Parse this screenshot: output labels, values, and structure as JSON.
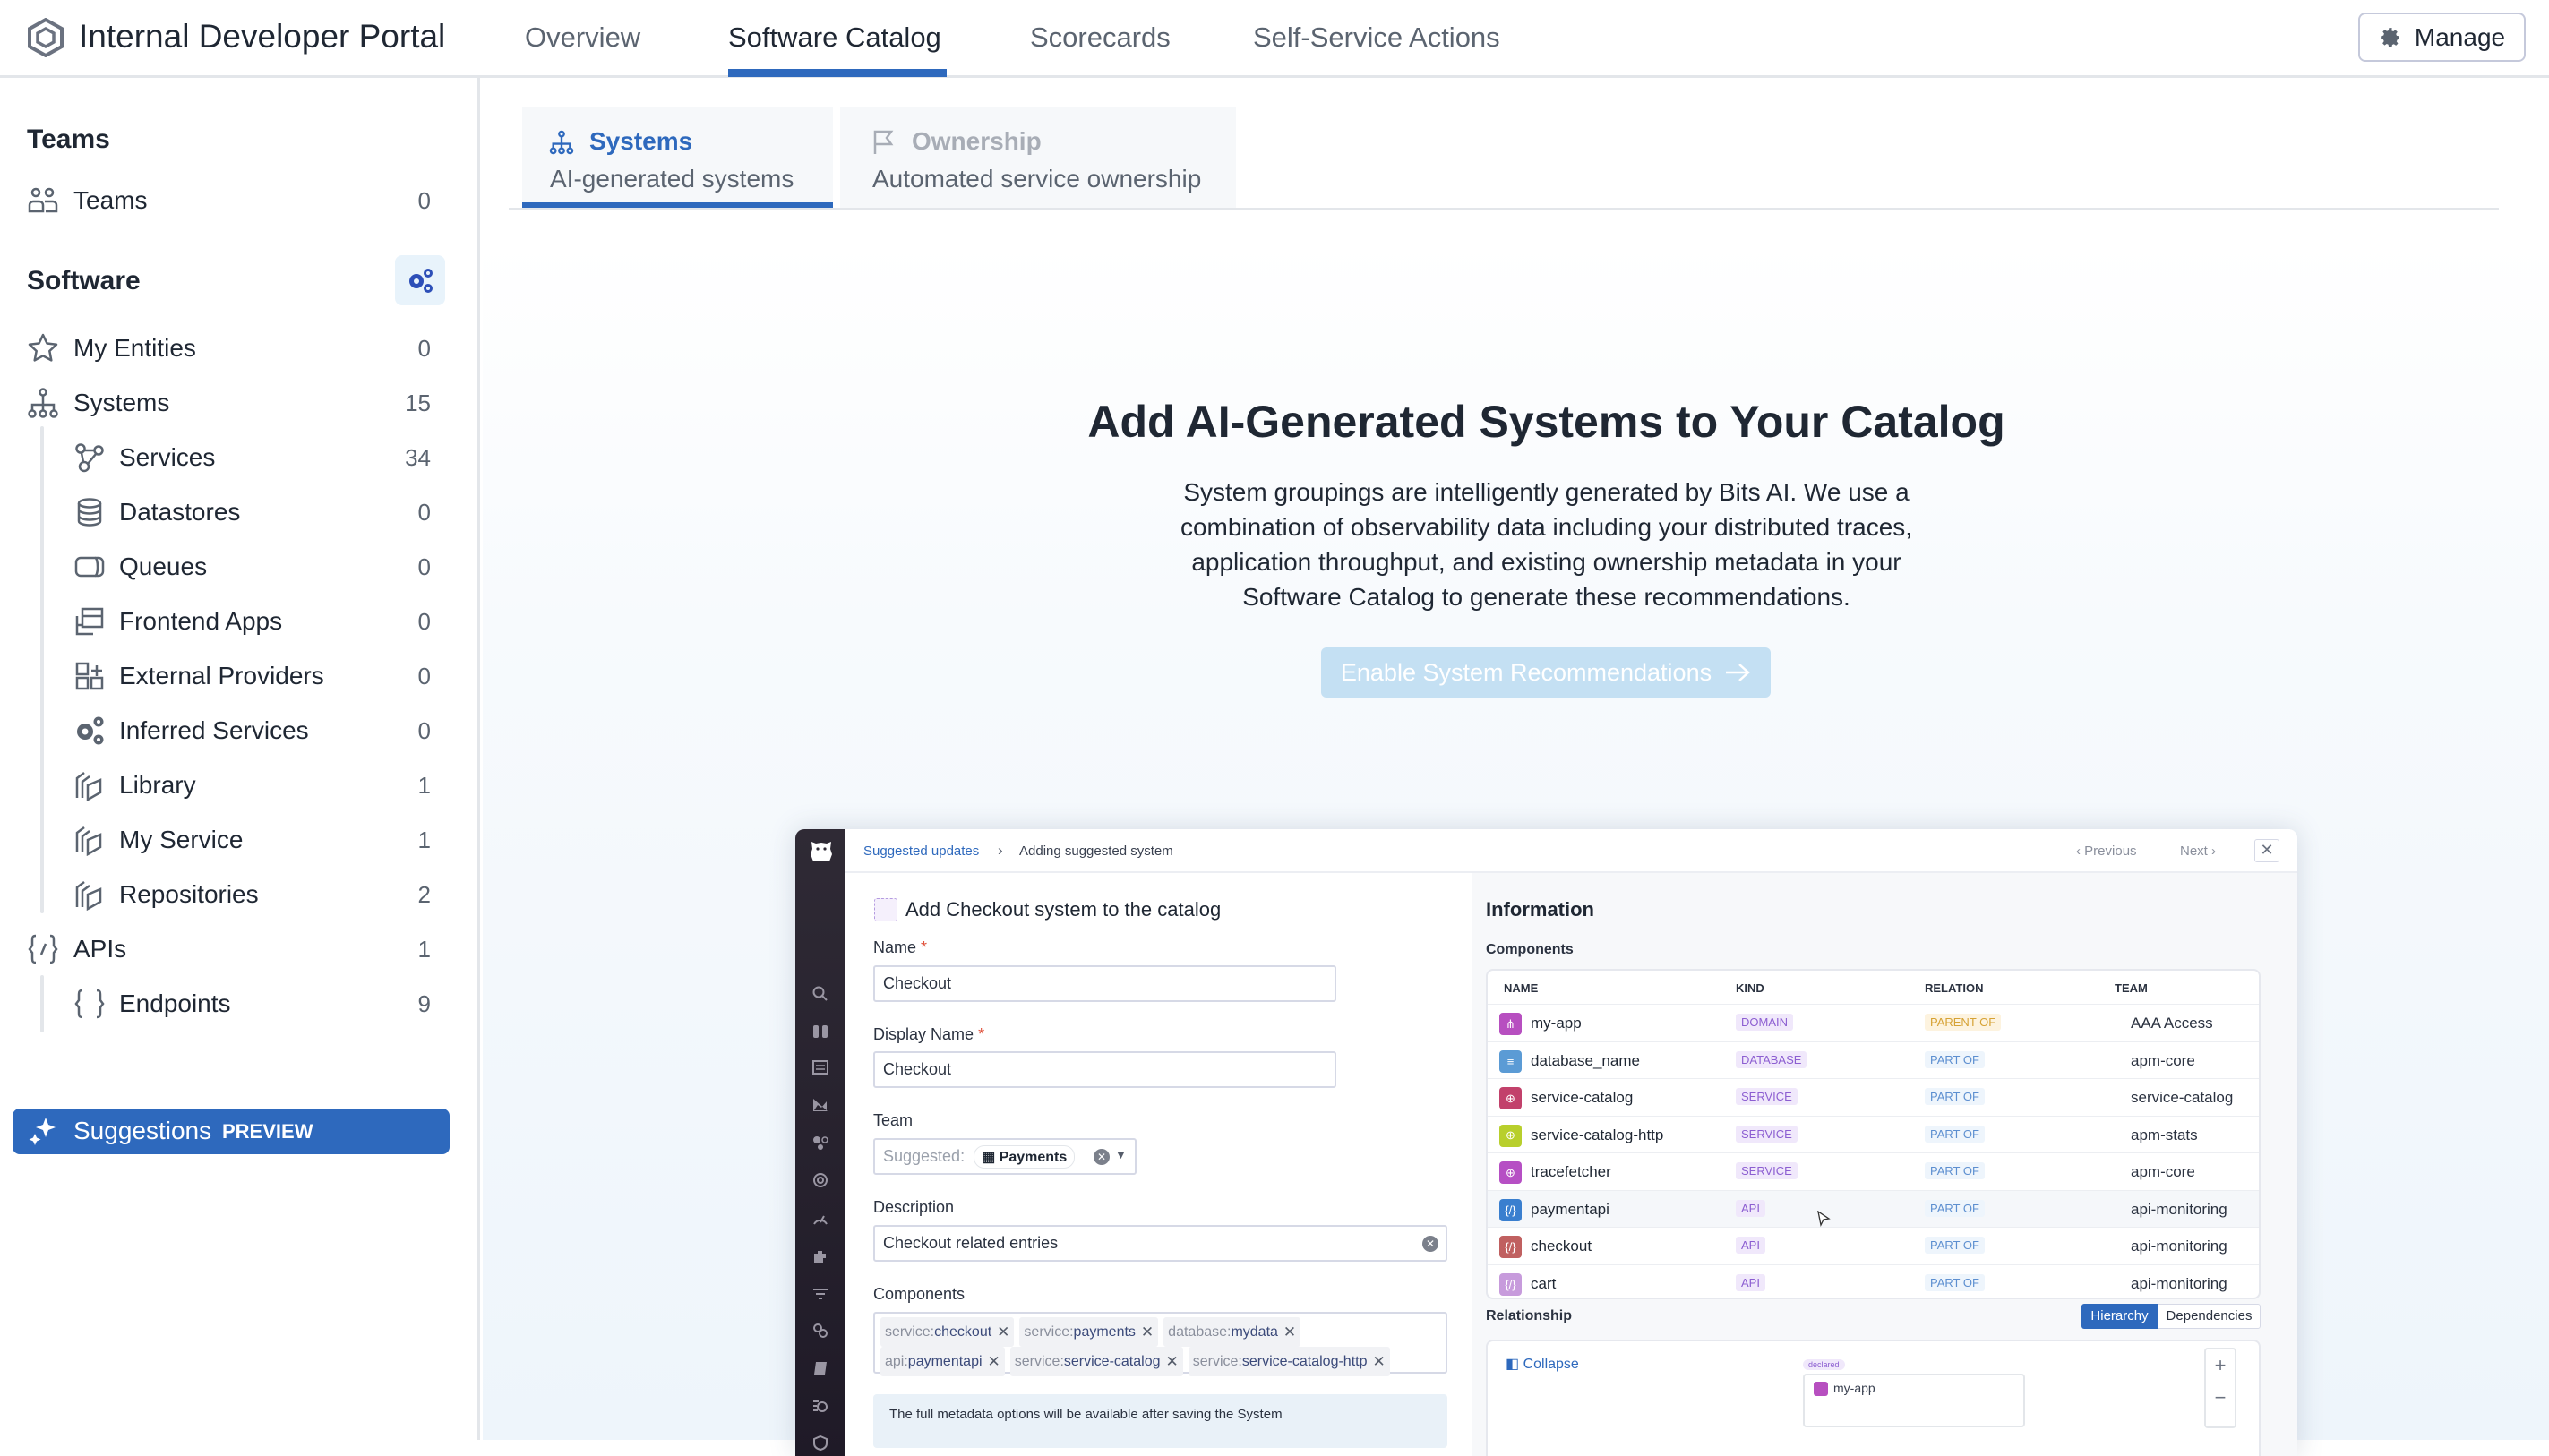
{
  "header": {
    "title": "Internal Developer Portal",
    "nav": [
      {
        "label": "Overview"
      },
      {
        "label": "Software Catalog",
        "active": true
      },
      {
        "label": "Scorecards"
      },
      {
        "label": "Self-Service Actions"
      }
    ],
    "manage_label": "Manage"
  },
  "colors": {
    "accent": "#2e69bd",
    "text": "#1f2733",
    "muted": "#5b6470",
    "button_disabled": "#c4e0f3"
  },
  "sidebar": {
    "teams_heading": "Teams",
    "teams_items": [
      {
        "label": "Teams",
        "count": "0",
        "icon": "people-icon"
      }
    ],
    "software_heading": "Software",
    "software_items": [
      {
        "label": "My Entities",
        "count": "0",
        "icon": "star-icon"
      },
      {
        "label": "Systems",
        "count": "15",
        "icon": "hierarchy-icon"
      },
      {
        "label": "Services",
        "count": "34",
        "icon": "services-icon"
      },
      {
        "label": "Datastores",
        "count": "0",
        "icon": "database-icon"
      },
      {
        "label": "Queues",
        "count": "0",
        "icon": "queue-icon"
      },
      {
        "label": "Frontend Apps",
        "count": "0",
        "icon": "frontend-icon"
      },
      {
        "label": "External Providers",
        "count": "0",
        "icon": "external-icon"
      },
      {
        "label": "Inferred Services",
        "count": "0",
        "icon": "gears-icon"
      },
      {
        "label": "Library",
        "count": "1",
        "icon": "layers-icon"
      },
      {
        "label": "My Service",
        "count": "1",
        "icon": "layers-icon"
      },
      {
        "label": "Repositories",
        "count": "2",
        "icon": "layers-icon"
      },
      {
        "label": "APIs",
        "count": "1",
        "icon": "api-icon"
      },
      {
        "label": "Endpoints",
        "count": "9",
        "icon": "braces-icon"
      }
    ],
    "suggestions": {
      "label": "Suggestions",
      "badge": "PREVIEW"
    }
  },
  "subtabs": [
    {
      "title": "Systems",
      "subtitle": "AI-generated systems",
      "active": true
    },
    {
      "title": "Ownership",
      "subtitle": "Automated service ownership"
    }
  ],
  "hero": {
    "title": "Add AI-Generated Systems to Your Catalog",
    "lines": [
      "System groupings are intelligently generated by Bits AI. We use a",
      "combination of observability data including your distributed traces,",
      "application throughput, and existing ownership metadata in your",
      "Software Catalog to generate these recommendations."
    ],
    "button": "Enable System Recommendations"
  },
  "preview": {
    "breadcrumb": [
      "Suggested updates",
      "Adding suggested system"
    ],
    "previous": "Previous",
    "next": "Next",
    "form_title": "Add Checkout system to the catalog",
    "name_label": "Name",
    "name_value": "Checkout",
    "display_name_label": "Display Name",
    "display_name_value": "Checkout",
    "team_label": "Team",
    "team_prefix": "Suggested:",
    "team_value": "Payments",
    "description_label": "Description",
    "description_value": "Checkout related entries",
    "components_label": "Components",
    "components": [
      {
        "kind": "service:",
        "name": "checkout"
      },
      {
        "kind": "service:",
        "name": "payments"
      },
      {
        "kind": "database:",
        "name": "mydata"
      },
      {
        "kind": "api:",
        "name": "paymentapi"
      },
      {
        "kind": "service:",
        "name": "service-catalog"
      },
      {
        "kind": "service:",
        "name": "service-catalog-http"
      }
    ],
    "note": "The full metadata options will be available after saving the System",
    "info_title": "Information",
    "info_components": "Components",
    "columns": [
      "NAME",
      "KIND",
      "RELATION",
      "TEAM"
    ],
    "rows": [
      {
        "name": "my-app",
        "kind": "DOMAIN",
        "relation": "PARENT OF",
        "team": "AAA Access",
        "color": "#b74fc0"
      },
      {
        "name": "database_name",
        "kind": "DATABASE",
        "relation": "PART OF",
        "team": "apm-core",
        "color": "#5b9bd5"
      },
      {
        "name": "service-catalog",
        "kind": "SERVICE",
        "relation": "PART OF",
        "team": "service-catalog",
        "color": "#c2416b"
      },
      {
        "name": "service-catalog-http",
        "kind": "SERVICE",
        "relation": "PART OF",
        "team": "apm-stats",
        "color": "#b8cf2c"
      },
      {
        "name": "tracefetcher",
        "kind": "SERVICE",
        "relation": "PART OF",
        "team": "apm-core",
        "color": "#b64fc4"
      },
      {
        "name": "paymentapi",
        "kind": "API",
        "relation": "PART OF",
        "team": "api-monitoring",
        "color": "#3a7fcf"
      },
      {
        "name": "checkout",
        "kind": "API",
        "relation": "PART OF",
        "team": "api-monitoring",
        "color": "#c06060"
      },
      {
        "name": "cart",
        "kind": "API",
        "relation": "PART OF",
        "team": "api-monitoring",
        "color": "#c79bdc"
      }
    ],
    "relationship_title": "Relationship",
    "toggle": [
      "Hierarchy",
      "Dependencies"
    ],
    "collapse": "Collapse",
    "declared": "declared",
    "node": "my-app"
  }
}
